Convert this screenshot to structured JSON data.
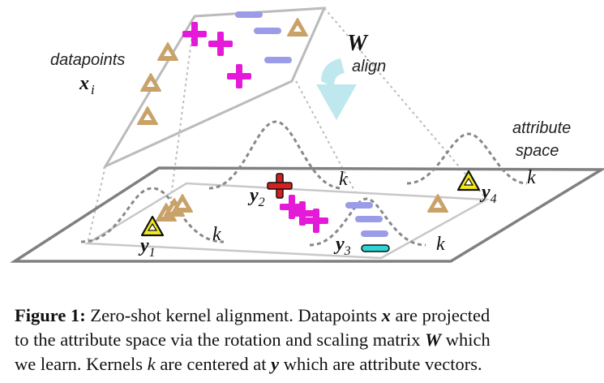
{
  "figure": {
    "datapoints_label": "datapoints",
    "datapoints_symbol": "x",
    "datapoints_subscript": "i",
    "matrix_symbol": "W",
    "align_label": "align",
    "attribute_space_line1": "attribute",
    "attribute_space_line2": "space",
    "kernel_label": "k",
    "y_symbol": "y",
    "y_subscripts": [
      "1",
      "2",
      "3",
      "4"
    ],
    "colors": {
      "plus": "#e41ad8",
      "minus": "#9b9be8",
      "triangle_fill": "#c8a268",
      "highlight_triangle": "#f2ea1a",
      "y2_plus": "#d62020",
      "y3_minus": "#2fd3d3",
      "arrow": "#bfe8ee",
      "plane": "#808080",
      "projection_lines": "#bbbbbb",
      "kernel_curve": "#888888"
    }
  },
  "caption": {
    "label": "Figure 1:",
    "line1": "Zero-shot kernel alignment. Datapoints",
    "x": "x",
    "line1_end": "are projected",
    "line2": "to the attribute space via the rotation and scaling matrix",
    "W": "W",
    "line2_end": "which",
    "line3_a": "we learn. Kernels",
    "k": "k",
    "line3_b": "are centered at",
    "y": "y",
    "line3_c": "which are attribute vectors."
  }
}
